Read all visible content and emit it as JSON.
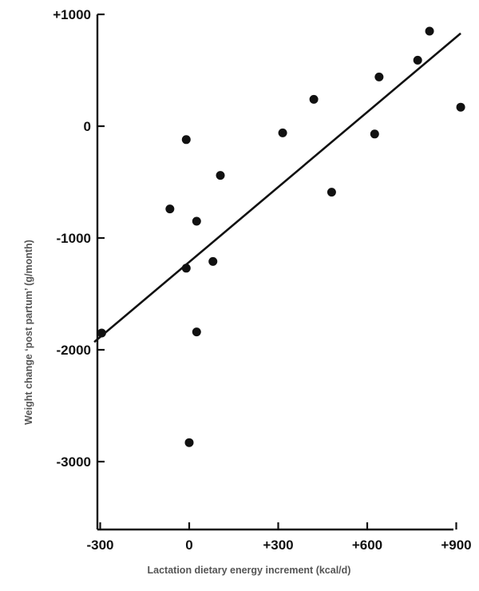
{
  "chart_data": {
    "type": "scatter",
    "title": "",
    "xlabel": "Lactation dietary energy increment (kcal/d)",
    "ylabel": "Weight change ‘post partum’ (g/month)",
    "xlim": [
      -320,
      935
    ],
    "ylim": [
      -3700,
      1000
    ],
    "x_ticks": [
      -300,
      0,
      300,
      600,
      900
    ],
    "x_tick_labels": [
      "-300",
      "0",
      "+300",
      "+600",
      "+900"
    ],
    "y_ticks": [
      1000,
      0,
      -1000,
      -2000,
      -3000
    ],
    "y_tick_labels": [
      "+1000",
      "0",
      "-1000",
      "-2000",
      "-3000"
    ],
    "grid": false,
    "points": [
      {
        "x": -295,
        "y": -1850
      },
      {
        "x": -65,
        "y": -740
      },
      {
        "x": -10,
        "y": -120
      },
      {
        "x": -10,
        "y": -1270
      },
      {
        "x": 0,
        "y": -2830
      },
      {
        "x": 25,
        "y": -850
      },
      {
        "x": 25,
        "y": -1840
      },
      {
        "x": 80,
        "y": -1210
      },
      {
        "x": 105,
        "y": -440
      },
      {
        "x": 315,
        "y": -60
      },
      {
        "x": 420,
        "y": 240
      },
      {
        "x": 480,
        "y": -590
      },
      {
        "x": 625,
        "y": -70
      },
      {
        "x": 640,
        "y": 440
      },
      {
        "x": 770,
        "y": 590
      },
      {
        "x": 810,
        "y": 850
      },
      {
        "x": 915,
        "y": 170
      }
    ],
    "trend_line": {
      "x": [
        -320,
        915
      ],
      "y": [
        -1930,
        830
      ]
    }
  }
}
